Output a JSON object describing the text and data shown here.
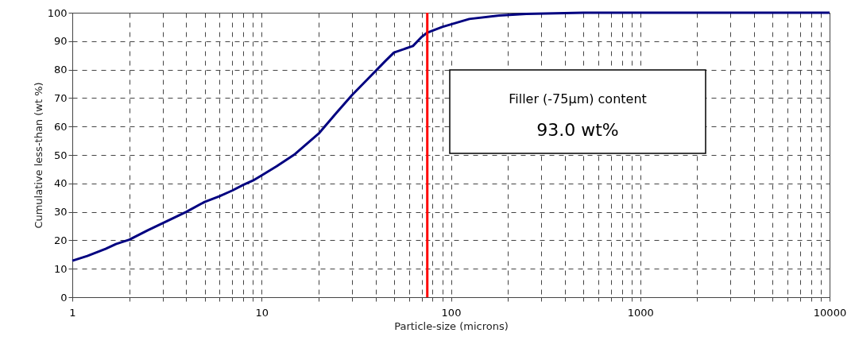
{
  "chart_data": {
    "type": "line",
    "xlabel": "Particle-size (microns)",
    "ylabel": "Cumulative less-than (wt %)",
    "log": "x",
    "x": [
      1,
      1.2,
      1.5,
      1.7,
      2,
      2.5,
      3,
      4,
      5,
      6,
      7,
      8,
      9,
      10,
      12,
      15,
      20,
      25,
      30,
      38,
      45,
      50,
      63,
      70,
      75,
      90,
      125,
      180,
      250,
      500,
      10000
    ],
    "series": [
      {
        "color": "#000080",
        "values": [
          12.8,
          14.5,
          17,
          18.7,
          20.2,
          23.5,
          26,
          30,
          33.5,
          35.5,
          37.5,
          39.5,
          41,
          42.8,
          46,
          50.3,
          57.5,
          65,
          71,
          78,
          83,
          86,
          88.3,
          91.5,
          93,
          95,
          97.8,
          99,
          99.6,
          100,
          100
        ]
      }
    ],
    "xlim": [
      1,
      10000
    ],
    "xticks": [
      1,
      {
        "value": 2,
        "label": null
      },
      {
        "value": 3,
        "label": null
      },
      {
        "value": 4,
        "label": null
      },
      {
        "value": 5,
        "label": null
      },
      {
        "value": 6,
        "label": null
      },
      {
        "value": 7,
        "label": null
      },
      {
        "value": 8,
        "label": null
      },
      {
        "value": 9,
        "label": null
      },
      10,
      {
        "value": 20,
        "label": null
      },
      {
        "value": 30,
        "label": null
      },
      {
        "value": 40,
        "label": null
      },
      {
        "value": 50,
        "label": null
      },
      {
        "value": 60,
        "label": null
      },
      {
        "value": 70,
        "label": null
      },
      {
        "value": 80,
        "label": null
      },
      {
        "value": 90,
        "label": null
      },
      100,
      {
        "value": 200,
        "label": null
      },
      {
        "value": 300,
        "label": null
      },
      {
        "value": 400,
        "label": null
      },
      {
        "value": 500,
        "label": null
      },
      {
        "value": 600,
        "label": null
      },
      {
        "value": 700,
        "label": null
      },
      {
        "value": 800,
        "label": null
      },
      {
        "value": 900,
        "label": null
      },
      1000,
      {
        "value": 2000,
        "label": null
      },
      {
        "value": 3000,
        "label": null
      },
      {
        "value": 4000,
        "label": null
      },
      {
        "value": 5000,
        "label": null
      },
      {
        "value": 6000,
        "label": null
      },
      {
        "value": 7000,
        "label": null
      },
      {
        "value": 8000,
        "label": null
      },
      {
        "value": 9000,
        "label": null
      },
      10000
    ],
    "ylim": [
      0,
      100
    ],
    "yticks": [
      0,
      10,
      20,
      30,
      40,
      50,
      60,
      70,
      80,
      90,
      100
    ],
    "grid": true,
    "marker": "none",
    "line_style": "solid",
    "legend": false,
    "ref_lines": [
      {
        "axis": "x",
        "value": 75,
        "color": "#ff0000",
        "line_style": "solid"
      }
    ],
    "annotations": [
      "Filler (-75μm) content",
      "93.0 wt%"
    ]
  }
}
